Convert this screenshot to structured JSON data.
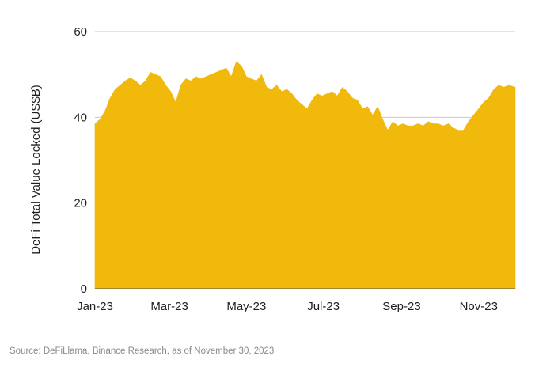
{
  "chart_data": {
    "type": "area",
    "ylabel": "DeFi Total Value Locked (US$B)",
    "xlabel": "",
    "ylim": [
      0,
      60
    ],
    "y_ticks": [
      0,
      20,
      40,
      60
    ],
    "x_tick_labels": [
      "Jan-23",
      "Mar-23",
      "May-23",
      "Jul-23",
      "Sep-23",
      "Nov-23"
    ],
    "grid": "horizontal",
    "fill_color": "#F0B90B",
    "grid_color": "#c8c8c8",
    "series": [
      {
        "x": [
          "2023-01-01",
          "2023-01-05",
          "2023-01-09",
          "2023-01-13",
          "2023-01-17",
          "2023-01-21",
          "2023-01-25",
          "2023-01-29",
          "2023-02-02",
          "2023-02-06",
          "2023-02-10",
          "2023-02-14",
          "2023-02-18",
          "2023-02-22",
          "2023-02-26",
          "2023-03-02",
          "2023-03-06",
          "2023-03-10",
          "2023-03-14",
          "2023-03-18",
          "2023-03-22",
          "2023-03-26",
          "2023-03-30",
          "2023-04-03",
          "2023-04-07",
          "2023-04-11",
          "2023-04-15",
          "2023-04-19",
          "2023-04-23",
          "2023-04-27",
          "2023-05-01",
          "2023-05-05",
          "2023-05-09",
          "2023-05-13",
          "2023-05-17",
          "2023-05-21",
          "2023-05-25",
          "2023-05-29",
          "2023-06-02",
          "2023-06-06",
          "2023-06-10",
          "2023-06-14",
          "2023-06-18",
          "2023-06-22",
          "2023-06-26",
          "2023-06-30",
          "2023-07-04",
          "2023-07-08",
          "2023-07-12",
          "2023-07-16",
          "2023-07-20",
          "2023-07-24",
          "2023-07-28",
          "2023-08-01",
          "2023-08-05",
          "2023-08-09",
          "2023-08-13",
          "2023-08-17",
          "2023-08-21",
          "2023-08-25",
          "2023-08-29",
          "2023-09-02",
          "2023-09-06",
          "2023-09-10",
          "2023-09-14",
          "2023-09-18",
          "2023-09-22",
          "2023-09-26",
          "2023-09-30",
          "2023-10-04",
          "2023-10-08",
          "2023-10-12",
          "2023-10-16",
          "2023-10-20",
          "2023-10-24",
          "2023-10-28",
          "2023-11-01",
          "2023-11-05",
          "2023-11-09",
          "2023-11-13",
          "2023-11-17",
          "2023-11-21",
          "2023-11-25",
          "2023-11-30"
        ],
        "values": [
          38.5,
          39.5,
          41.5,
          44.5,
          46.5,
          47.5,
          48.5,
          49.2,
          48.5,
          47.5,
          48.5,
          50.5,
          50.0,
          49.5,
          47.5,
          46.0,
          43.5,
          47.5,
          49.0,
          48.5,
          49.5,
          49.0,
          49.5,
          50.0,
          50.5,
          51.0,
          51.5,
          49.5,
          53.0,
          52.0,
          49.5,
          49.0,
          48.5,
          50.0,
          47.0,
          46.5,
          47.5,
          46.0,
          46.5,
          45.5,
          44.0,
          43.0,
          42.0,
          44.0,
          45.5,
          45.0,
          45.5,
          46.0,
          45.0,
          47.0,
          46.0,
          44.5,
          44.0,
          42.0,
          42.5,
          40.5,
          42.5,
          39.5,
          37.0,
          39.0,
          38.0,
          38.5,
          38.0,
          38.0,
          38.5,
          38.0,
          39.0,
          38.5,
          38.5,
          38.0,
          38.5,
          37.5,
          37.0,
          37.0,
          39.0,
          40.5,
          42.0,
          43.5,
          44.5,
          46.5,
          47.5,
          47.0,
          47.5,
          47.0
        ]
      }
    ]
  },
  "source_text": "Source: DeFiLlama, Binance Research, as of November 30, 2023"
}
